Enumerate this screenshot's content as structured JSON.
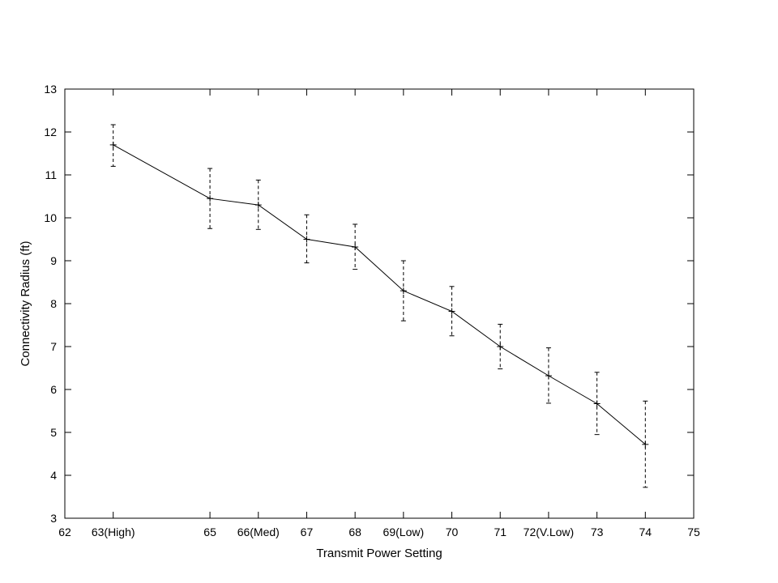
{
  "chart_data": {
    "type": "line",
    "title": "",
    "xlabel": "Transmit Power Setting",
    "ylabel": "Connectivity Radius (ft)",
    "xlim": [
      62,
      75
    ],
    "ylim": [
      3,
      13
    ],
    "x_ticks": [
      {
        "value": 62,
        "label": "62"
      },
      {
        "value": 63,
        "label": "63(High)"
      },
      {
        "value": 65,
        "label": "65"
      },
      {
        "value": 66,
        "label": "66(Med)"
      },
      {
        "value": 67,
        "label": "67"
      },
      {
        "value": 68,
        "label": "68"
      },
      {
        "value": 69,
        "label": "69(Low)"
      },
      {
        "value": 70,
        "label": "70"
      },
      {
        "value": 71,
        "label": "71"
      },
      {
        "value": 72,
        "label": "72(V.Low)"
      },
      {
        "value": 73,
        "label": "73"
      },
      {
        "value": 74,
        "label": "74"
      },
      {
        "value": 75,
        "label": "75"
      }
    ],
    "y_ticks": [
      3,
      4,
      5,
      6,
      7,
      8,
      9,
      10,
      11,
      12,
      13
    ],
    "grid": false,
    "series": [
      {
        "x": [
          63,
          65,
          66,
          67,
          68,
          69,
          70,
          71,
          72,
          73,
          74
        ],
        "y": [
          11.7,
          10.45,
          10.3,
          9.5,
          9.32,
          8.3,
          7.82,
          7.0,
          6.32,
          5.67,
          4.72
        ],
        "y_low": [
          11.2,
          9.75,
          9.73,
          8.95,
          8.8,
          7.6,
          7.25,
          6.48,
          5.68,
          4.95,
          3.72
        ],
        "y_high": [
          12.17,
          11.15,
          10.88,
          10.07,
          9.85,
          9.0,
          8.4,
          7.52,
          6.97,
          6.4,
          5.73
        ],
        "color": "#000000",
        "marker": "plus",
        "error_bar_style": "dashed"
      }
    ]
  }
}
